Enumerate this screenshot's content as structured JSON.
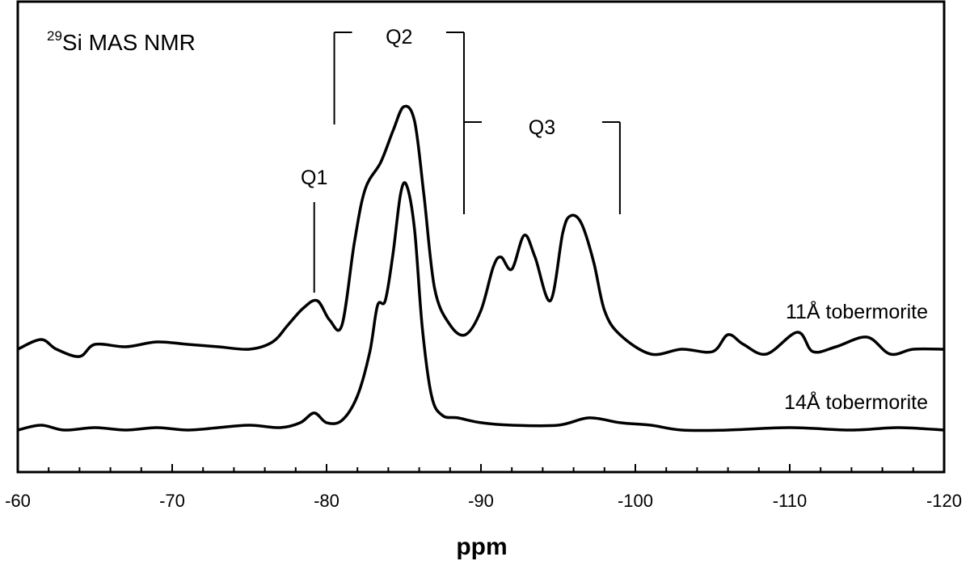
{
  "chart_data": {
    "type": "line",
    "title": {
      "superscript": "29",
      "text": "Si MAS NMR"
    },
    "xlabel": "ppm",
    "ylabel": "",
    "xlim": [
      -60,
      -120
    ],
    "x_reversed": true,
    "x_ticks": [
      "-60",
      "-70",
      "-80",
      "-90",
      "-100",
      "-110",
      "-120"
    ],
    "grid": false,
    "y_ticks_shown": false,
    "line_color": "#000000",
    "annotations": [
      {
        "label": "Q1",
        "bracket": "single",
        "ppm": [
          -79.2
        ]
      },
      {
        "label": "Q2",
        "bracket": "pair",
        "ppm": [
          -80.5,
          -88.9
        ]
      },
      {
        "label": "Q3",
        "bracket": "pair",
        "ppm": [
          -88.9,
          -99.0
        ]
      }
    ],
    "series": [
      {
        "name": "11Å tobermorite",
        "note": "relative intensity, offset trace",
        "x": [
          -60,
          -61.5,
          -62.5,
          -64,
          -65,
          -67,
          -69,
          -71,
          -73,
          -75,
          -76.5,
          -77.5,
          -78.5,
          -79.4,
          -80.2,
          -81,
          -81.8,
          -82.5,
          -83.5,
          -84.3,
          -85,
          -85.7,
          -86.3,
          -87,
          -88,
          -89,
          -90,
          -90.8,
          -91.3,
          -92,
          -92.8,
          -93.5,
          -94.5,
          -95.3,
          -95.8,
          -96.5,
          -97.3,
          -98,
          -99,
          -101,
          -103,
          -105,
          -106,
          -107,
          -108.5,
          -110.5,
          -111.5,
          -113,
          -115,
          -116.5,
          -118,
          -120
        ],
        "y": [
          0.0,
          0.04,
          0.0,
          -0.03,
          0.02,
          0.01,
          0.03,
          0.02,
          0.01,
          0.0,
          0.03,
          0.1,
          0.17,
          0.2,
          0.12,
          0.1,
          0.44,
          0.66,
          0.77,
          0.9,
          1.0,
          0.94,
          0.64,
          0.25,
          0.1,
          0.06,
          0.16,
          0.34,
          0.38,
          0.33,
          0.47,
          0.38,
          0.2,
          0.48,
          0.55,
          0.52,
          0.36,
          0.16,
          0.06,
          -0.02,
          0.0,
          -0.01,
          0.06,
          0.02,
          -0.02,
          0.07,
          -0.01,
          0.01,
          0.05,
          -0.02,
          0.0,
          0.0
        ]
      },
      {
        "name": "14Å tobermorite",
        "note": "relative intensity",
        "x": [
          -60,
          -61.5,
          -63,
          -65,
          -67,
          -69,
          -71,
          -73,
          -75,
          -77,
          -78.3,
          -79.2,
          -80,
          -81,
          -82,
          -82.8,
          -83.3,
          -83.8,
          -84.3,
          -84.8,
          -85.2,
          -85.7,
          -86.2,
          -86.8,
          -87.5,
          -88.5,
          -90,
          -92,
          -95,
          -97,
          -99,
          -101,
          -103,
          -106,
          -110,
          -114,
          -117,
          -120
        ],
        "y": [
          0.0,
          0.02,
          0.0,
          0.01,
          0.0,
          0.01,
          0.0,
          0.01,
          0.02,
          0.01,
          0.03,
          0.07,
          0.03,
          0.04,
          0.14,
          0.32,
          0.51,
          0.53,
          0.72,
          0.97,
          1.0,
          0.82,
          0.42,
          0.14,
          0.06,
          0.05,
          0.03,
          0.02,
          0.02,
          0.05,
          0.03,
          0.02,
          0.0,
          0.0,
          0.01,
          0.0,
          0.01,
          0.0
        ]
      }
    ]
  }
}
